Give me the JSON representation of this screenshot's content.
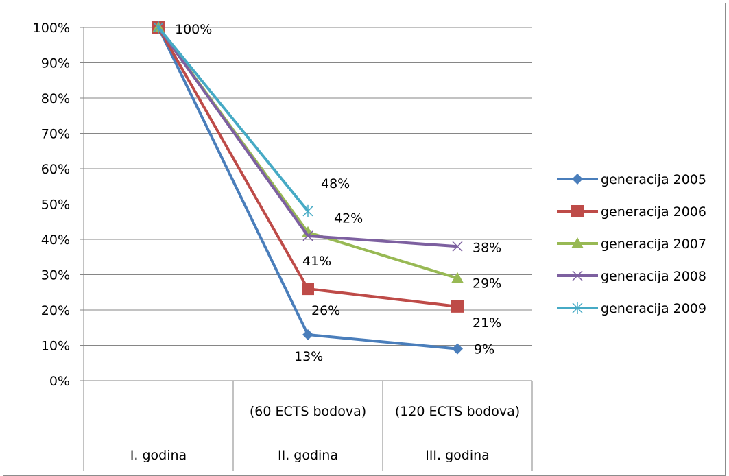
{
  "chart_data": {
    "type": "line",
    "categories": [
      {
        "top": "",
        "bottom": "I. godina"
      },
      {
        "top": "(60 ECTS bodova)",
        "bottom": "II. godina"
      },
      {
        "top": "(120 ECTS bodova)",
        "bottom": "III. godina"
      }
    ],
    "ylim": [
      0,
      100
    ],
    "yticks": [
      "0%",
      "10%",
      "20%",
      "30%",
      "40%",
      "50%",
      "60%",
      "70%",
      "80%",
      "90%",
      "100%"
    ],
    "grid": true,
    "legend_position": "right",
    "series": [
      {
        "name": "generacija 2005",
        "color": "#4A7EBB",
        "marker": "diamond",
        "values": [
          100,
          13,
          9
        ],
        "labels": [
          "",
          "13%",
          "9%"
        ]
      },
      {
        "name": "generacija 2006",
        "color": "#BE4B48",
        "marker": "square",
        "values": [
          100,
          26,
          21
        ],
        "labels": [
          "100%",
          "26%",
          "21%"
        ]
      },
      {
        "name": "generacija 2007",
        "color": "#98B954",
        "marker": "triangle",
        "values": [
          100,
          42,
          29
        ],
        "labels": [
          "",
          "42%",
          "29%"
        ]
      },
      {
        "name": "generacija 2008",
        "color": "#7D60A0",
        "marker": "x",
        "values": [
          100,
          41,
          38
        ],
        "labels": [
          "",
          "41%",
          "38%"
        ]
      },
      {
        "name": "generacija 2009",
        "color": "#46AAC5",
        "marker": "star",
        "values": [
          100,
          48,
          null
        ],
        "labels": [
          "",
          "48%",
          ""
        ]
      }
    ]
  }
}
